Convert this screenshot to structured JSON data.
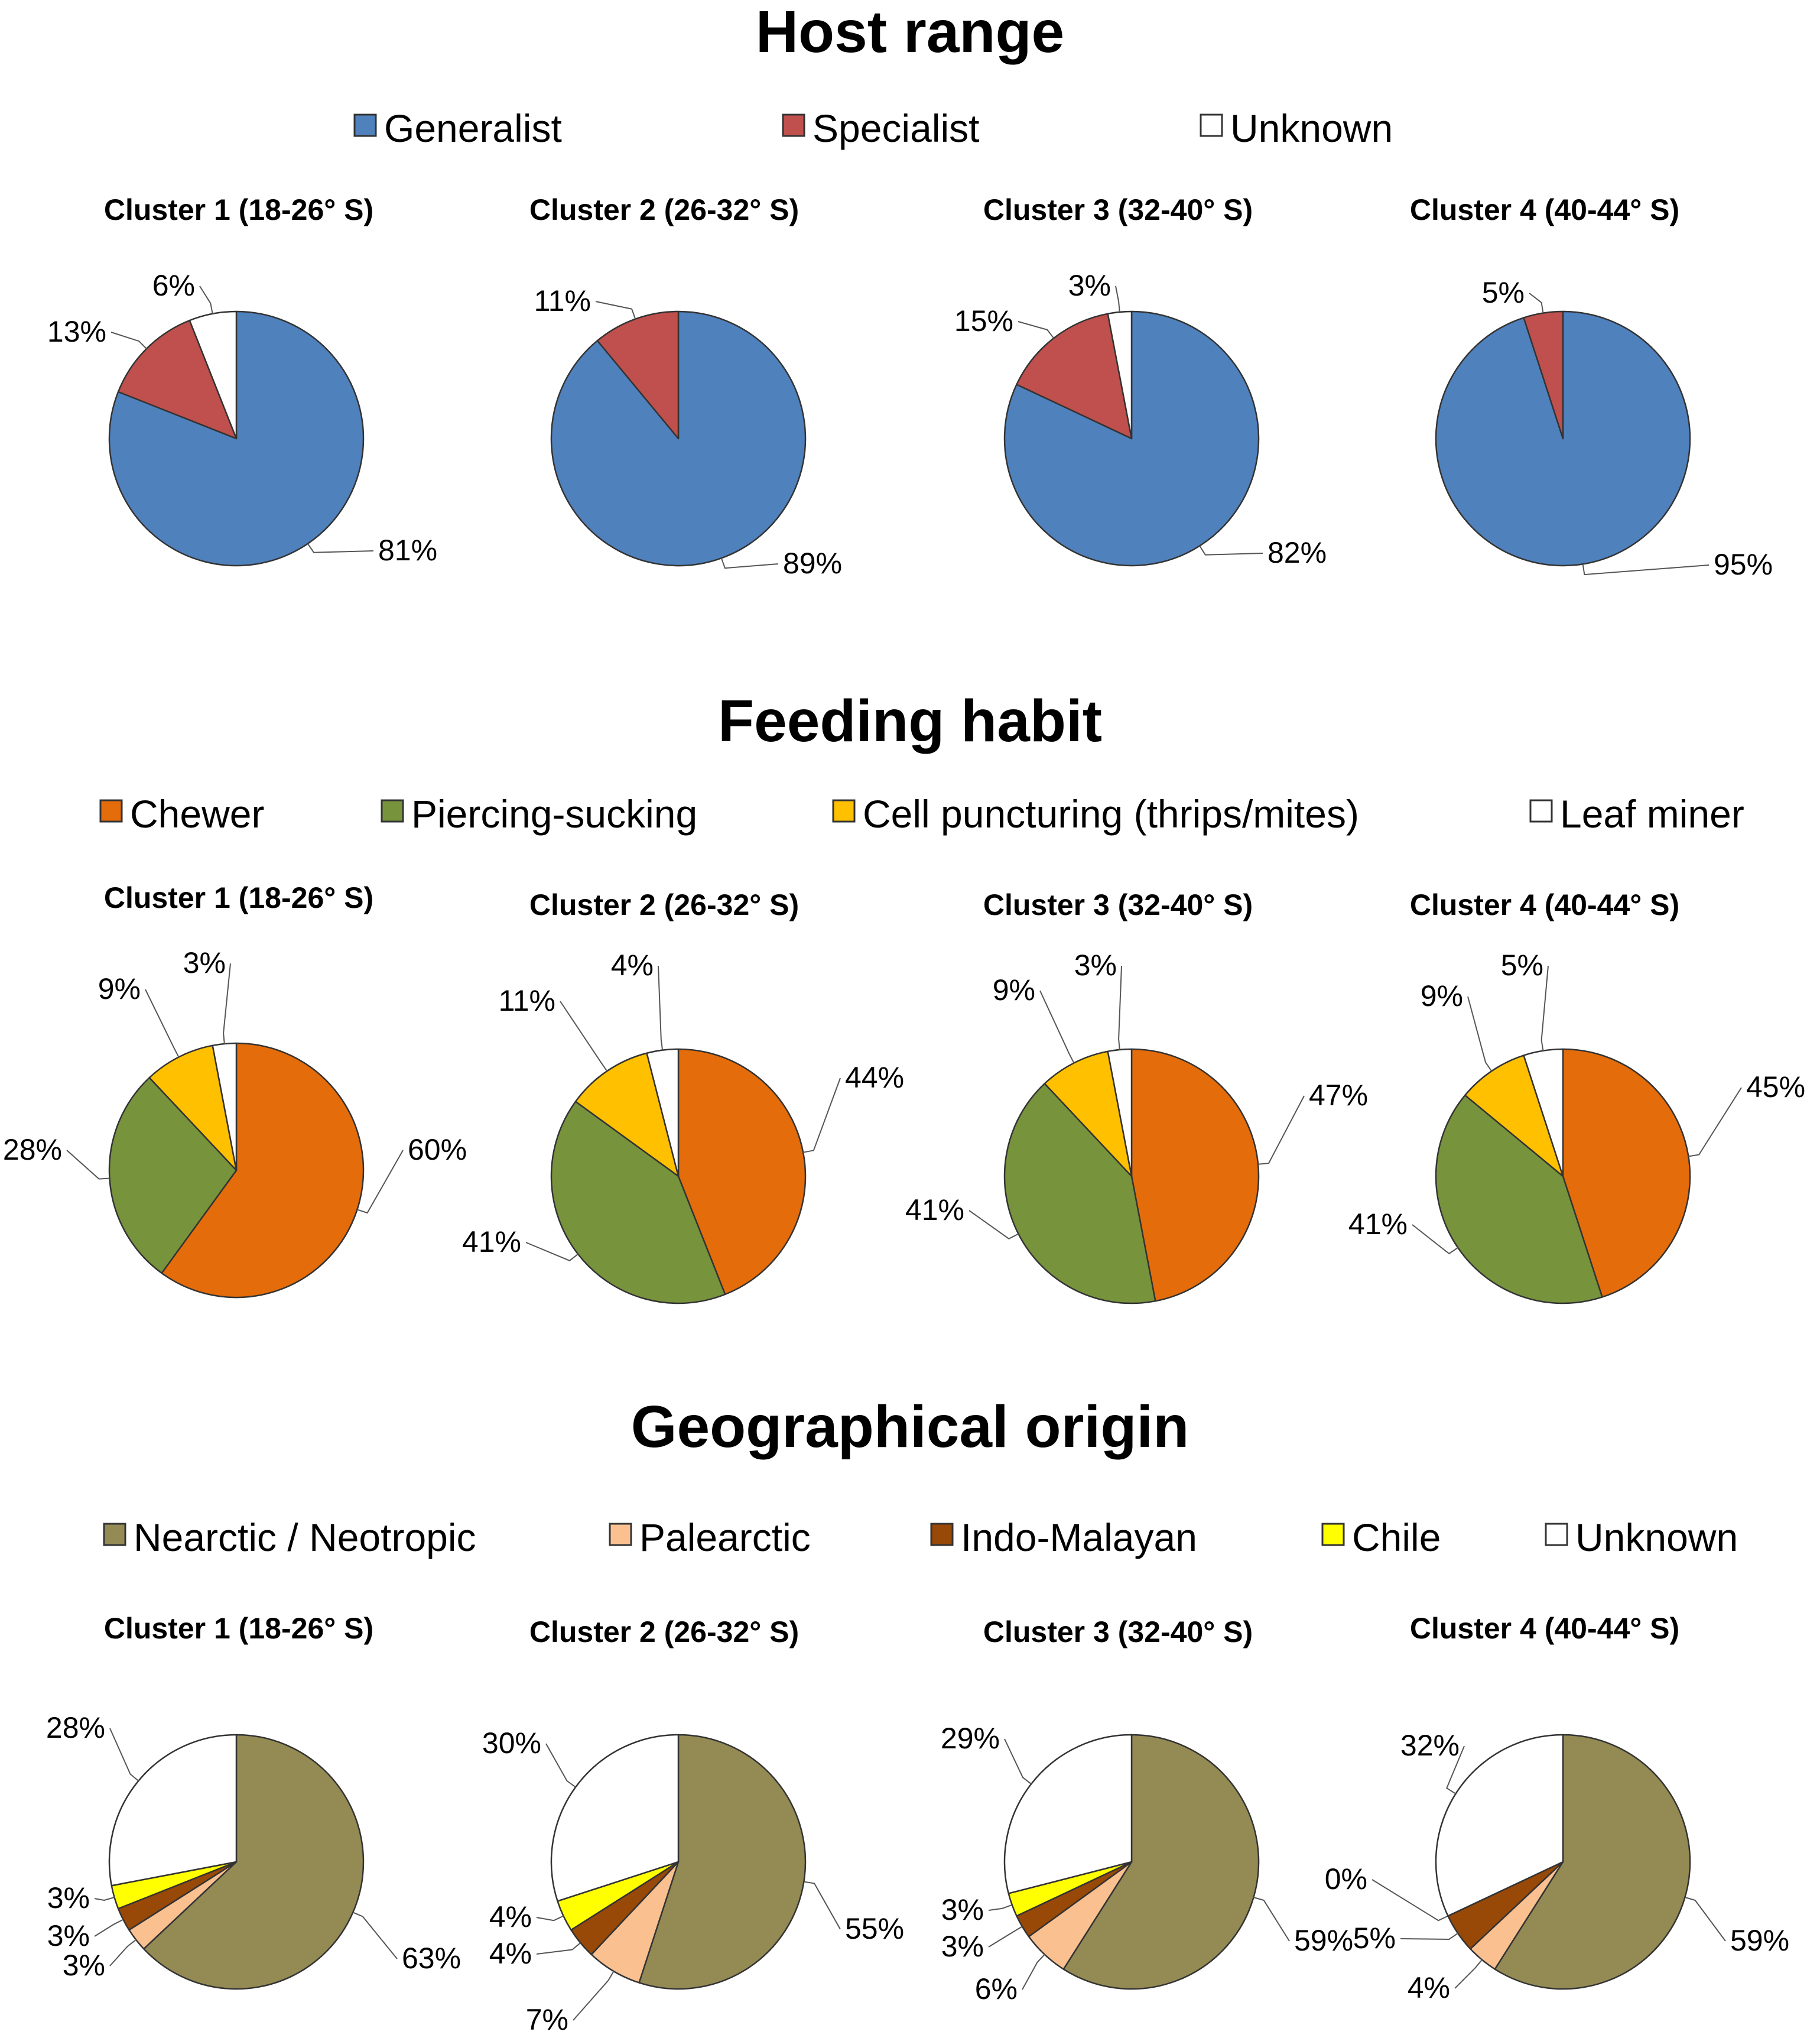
{
  "colors": {
    "generalist": "#4f81bd",
    "specialist": "#c0504d",
    "unknown": "#ffffff",
    "chewer": "#e46c0a",
    "piercing": "#77933c",
    "cell": "#ffc000",
    "leafminer": "#ffffff",
    "nearctic": "#948a54",
    "palearctic": "#fac090",
    "indo": "#984807",
    "chile": "#ffff00",
    "outline": "#333333"
  },
  "chart_data": [
    {
      "type": "pie",
      "title": "Host range",
      "legend": [
        {
          "label": "Generalist",
          "color_key": "generalist"
        },
        {
          "label": "Specialist",
          "color_key": "specialist"
        },
        {
          "label": "Unknown",
          "color_key": "unknown"
        }
      ],
      "pies": [
        {
          "title": "Cluster 1 (18-26° S)",
          "slices": [
            {
              "label": "Generalist",
              "value": 81,
              "text": "81%",
              "color_key": "generalist"
            },
            {
              "label": "Specialist",
              "value": 13,
              "text": "13%",
              "color_key": "specialist"
            },
            {
              "label": "Unknown",
              "value": 6,
              "text": "6%",
              "color_key": "unknown"
            }
          ]
        },
        {
          "title": "Cluster 2 (26-32° S)",
          "slices": [
            {
              "label": "Generalist",
              "value": 89,
              "text": "89%",
              "color_key": "generalist"
            },
            {
              "label": "Specialist",
              "value": 11,
              "text": "11%",
              "color_key": "specialist"
            }
          ]
        },
        {
          "title": "Cluster 3 (32-40° S)",
          "slices": [
            {
              "label": "Generalist",
              "value": 82,
              "text": "82%",
              "color_key": "generalist"
            },
            {
              "label": "Specialist",
              "value": 15,
              "text": "15%",
              "color_key": "specialist"
            },
            {
              "label": "Unknown",
              "value": 3,
              "text": "3%",
              "color_key": "unknown"
            }
          ]
        },
        {
          "title": "Cluster 4 (40-44° S)",
          "slices": [
            {
              "label": "Generalist",
              "value": 95,
              "text": "95%",
              "color_key": "generalist"
            },
            {
              "label": "Specialist",
              "value": 5,
              "text": "5%",
              "color_key": "specialist"
            }
          ]
        }
      ]
    },
    {
      "type": "pie",
      "title": "Feeding habit",
      "legend": [
        {
          "label": "Chewer",
          "color_key": "chewer"
        },
        {
          "label": "Piercing-sucking",
          "color_key": "piercing"
        },
        {
          "label": "Cell puncturing (thrips/mites)",
          "color_key": "cell"
        },
        {
          "label": "Leaf miner",
          "color_key": "leafminer"
        }
      ],
      "pies": [
        {
          "title": "Cluster 1 (18-26° S)",
          "slices": [
            {
              "label": "Chewer",
              "value": 60,
              "text": "60%",
              "color_key": "chewer"
            },
            {
              "label": "Piercing-sucking",
              "value": 28,
              "text": "28%",
              "color_key": "piercing"
            },
            {
              "label": "Cell puncturing (thrips/mites)",
              "value": 9,
              "text": "9%",
              "color_key": "cell"
            },
            {
              "label": "Leaf miner",
              "value": 3,
              "text": "3%",
              "color_key": "leafminer"
            }
          ]
        },
        {
          "title": "Cluster 2 (26-32° S)",
          "slices": [
            {
              "label": "Chewer",
              "value": 44,
              "text": "44%",
              "color_key": "chewer"
            },
            {
              "label": "Piercing-sucking",
              "value": 41,
              "text": "41%",
              "color_key": "piercing"
            },
            {
              "label": "Cell puncturing (thrips/mites)",
              "value": 11,
              "text": "11%",
              "color_key": "cell"
            },
            {
              "label": "Leaf miner",
              "value": 4,
              "text": "4%",
              "color_key": "leafminer"
            }
          ]
        },
        {
          "title": "Cluster 3 (32-40° S)",
          "slices": [
            {
              "label": "Chewer",
              "value": 47,
              "text": "47%",
              "color_key": "chewer"
            },
            {
              "label": "Piercing-sucking",
              "value": 41,
              "text": "41%",
              "color_key": "piercing"
            },
            {
              "label": "Cell puncturing (thrips/mites)",
              "value": 9,
              "text": "9%",
              "color_key": "cell"
            },
            {
              "label": "Leaf miner",
              "value": 3,
              "text": "3%",
              "color_key": "leafminer"
            }
          ]
        },
        {
          "title": "Cluster 4 (40-44° S)",
          "slices": [
            {
              "label": "Chewer",
              "value": 45,
              "text": "45%",
              "color_key": "chewer"
            },
            {
              "label": "Piercing-sucking",
              "value": 41,
              "text": "41%",
              "color_key": "piercing"
            },
            {
              "label": "Cell puncturing (thrips/mites)",
              "value": 9,
              "text": "9%",
              "color_key": "cell"
            },
            {
              "label": "Leaf miner",
              "value": 5,
              "text": "5%",
              "color_key": "leafminer"
            }
          ]
        }
      ]
    },
    {
      "type": "pie",
      "title": "Geographical origin",
      "legend": [
        {
          "label": "Nearctic / Neotropic",
          "color_key": "nearctic"
        },
        {
          "label": "Palearctic",
          "color_key": "palearctic"
        },
        {
          "label": "Indo-Malayan",
          "color_key": "indo"
        },
        {
          "label": "Chile",
          "color_key": "chile"
        },
        {
          "label": "Unknown",
          "color_key": "unknown"
        }
      ],
      "pies": [
        {
          "title": "Cluster 1 (18-26° S)",
          "slices": [
            {
              "label": "Nearctic / Neotropic",
              "value": 63,
              "text": "63%",
              "color_key": "nearctic"
            },
            {
              "label": "Palearctic",
              "value": 3,
              "text": "3%",
              "color_key": "palearctic"
            },
            {
              "label": "Indo-Malayan",
              "value": 3,
              "text": "3%",
              "color_key": "indo"
            },
            {
              "label": "Chile",
              "value": 3,
              "text": "3%",
              "color_key": "chile"
            },
            {
              "label": "Unknown",
              "value": 28,
              "text": "28%",
              "color_key": "unknown"
            }
          ]
        },
        {
          "title": "Cluster 2 (26-32° S)",
          "slices": [
            {
              "label": "Nearctic / Neotropic",
              "value": 55,
              "text": "55%",
              "color_key": "nearctic"
            },
            {
              "label": "Palearctic",
              "value": 7,
              "text": "7%",
              "color_key": "palearctic"
            },
            {
              "label": "Indo-Malayan",
              "value": 4,
              "text": "4%",
              "color_key": "indo"
            },
            {
              "label": "Chile",
              "value": 4,
              "text": "4%",
              "color_key": "chile"
            },
            {
              "label": "Unknown",
              "value": 30,
              "text": "30%",
              "color_key": "unknown"
            }
          ]
        },
        {
          "title": "Cluster 3 (32-40° S)",
          "slices": [
            {
              "label": "Nearctic / Neotropic",
              "value": 59,
              "text": "59%",
              "color_key": "nearctic"
            },
            {
              "label": "Palearctic",
              "value": 6,
              "text": "6%",
              "color_key": "palearctic"
            },
            {
              "label": "Indo-Malayan",
              "value": 3,
              "text": "3%",
              "color_key": "indo"
            },
            {
              "label": "Chile",
              "value": 3,
              "text": "3%",
              "color_key": "chile"
            },
            {
              "label": "Unknown",
              "value": 29,
              "text": "29%",
              "color_key": "unknown"
            }
          ]
        },
        {
          "title": "Cluster 4 (40-44° S)",
          "slices": [
            {
              "label": "Nearctic / Neotropic",
              "value": 59,
              "text": "59%",
              "color_key": "nearctic"
            },
            {
              "label": "Palearctic",
              "value": 4,
              "text": "4%",
              "color_key": "palearctic"
            },
            {
              "label": "Indo-Malayan",
              "value": 5,
              "text": "5%",
              "color_key": "indo"
            },
            {
              "label": "Chile",
              "value": 0,
              "text": "0%",
              "color_key": "chile"
            },
            {
              "label": "Unknown",
              "value": 32,
              "text": "32%",
              "color_key": "unknown"
            }
          ]
        }
      ]
    }
  ]
}
